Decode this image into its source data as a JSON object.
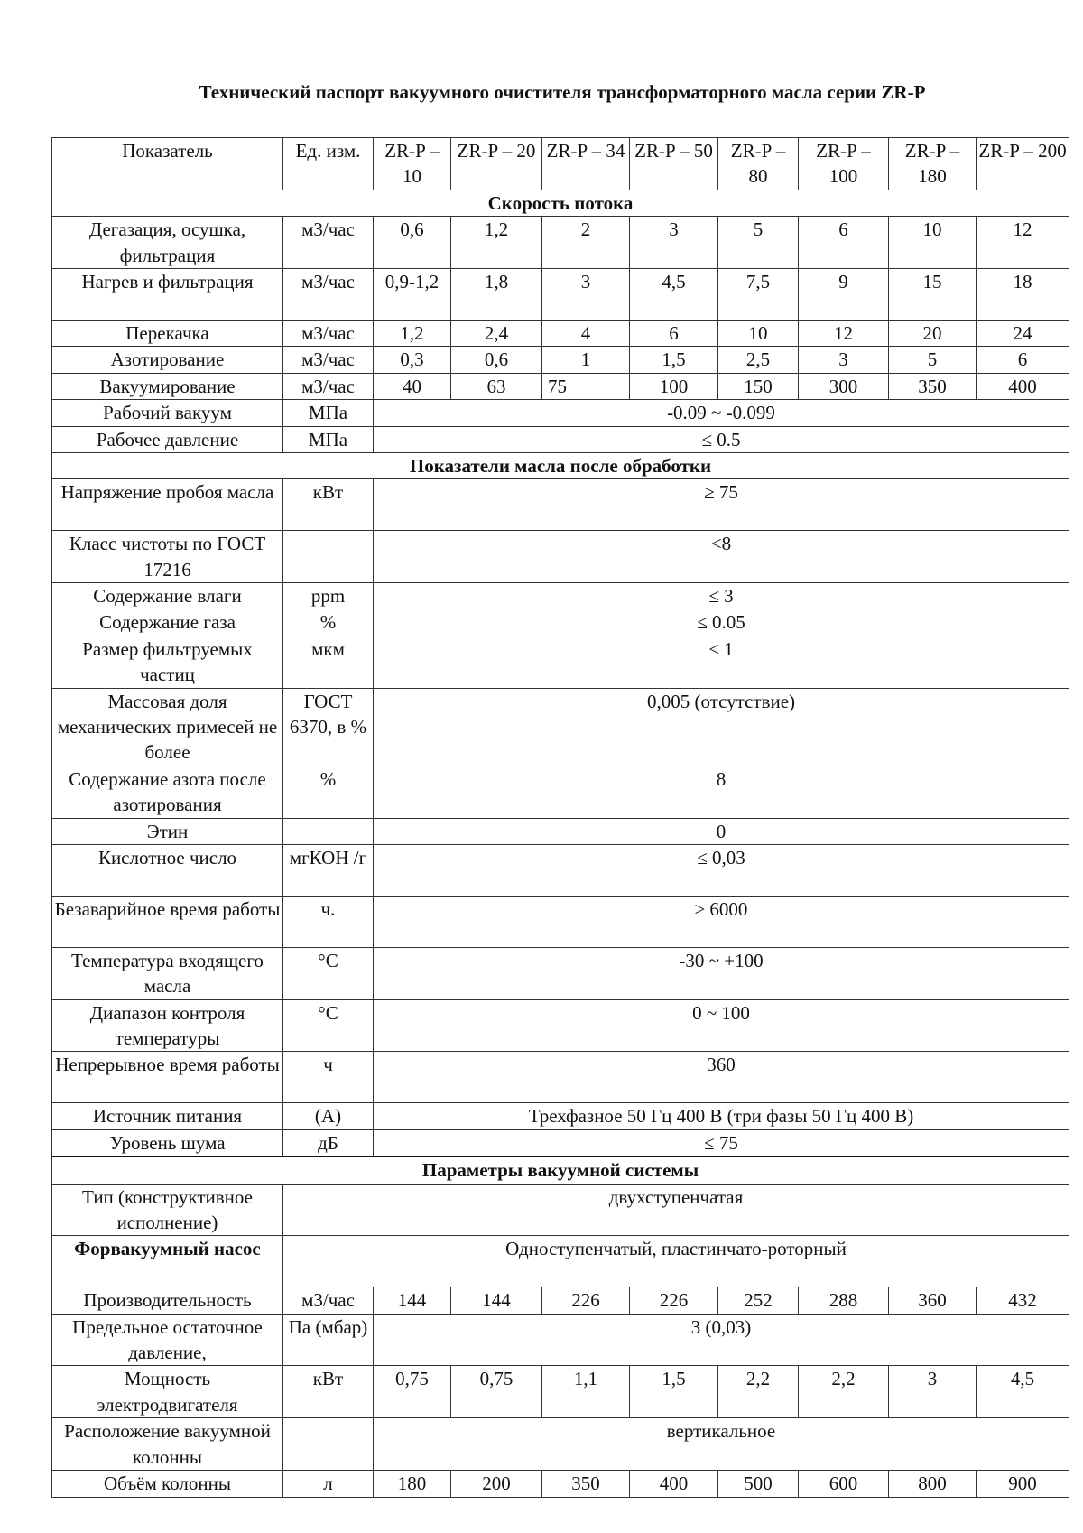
{
  "title": "Технический паспорт вакуумного очистителя трансформаторного масла серии ZR-P",
  "header": {
    "indicator": "Показатель",
    "unit": "Ед. изм.",
    "models": [
      "ZR-P – 10",
      "ZR-P – 20",
      "ZR-P – 34",
      "ZR-P – 50",
      "ZR-P – 80",
      "ZR-P – 100",
      "ZR-P – 180",
      "ZR-P – 200"
    ]
  },
  "rows": [
    {
      "section": "Скорость потока"
    },
    {
      "label": "Дегазация, осушка, фильтрация",
      "unit": "м3/час",
      "values": [
        "0,6",
        "1,2",
        "2",
        "3",
        "5",
        "6",
        "10",
        "12"
      ],
      "lines": 2
    },
    {
      "label": "Нагрев и фильтрация",
      "unit": "м3/час",
      "values": [
        "0,9-1,2",
        "1,8",
        "3",
        "4,5",
        "7,5",
        "9",
        "15",
        "18"
      ],
      "lines": 2
    },
    {
      "label": "Перекачка",
      "unit": "м3/час",
      "values": [
        "1,2",
        "2,4",
        "4",
        "6",
        "10",
        "12",
        "20",
        "24"
      ],
      "lines": 1
    },
    {
      "label": "Азотирование",
      "unit": "м3/час",
      "values": [
        "0,3",
        "0,6",
        "1",
        "1,5",
        "2,5",
        "3",
        "5",
        "6"
      ],
      "lines": 1
    },
    {
      "label": "Вакуумирование",
      "unit": "м3/час",
      "values": [
        "40",
        "63",
        "75",
        "100",
        "150",
        "300",
        "350",
        "400"
      ],
      "lines": 1
    },
    {
      "label": "Рабочий вакуум",
      "unit": "МПа",
      "value": "-0.09 ~ -0.099",
      "lines": 1
    },
    {
      "label": "Рабочее давление",
      "unit": "МПа",
      "value": "≤ 0.5",
      "lines": 1
    },
    {
      "section": "Показатели масла после обработки"
    },
    {
      "label": "Напряжение пробоя масла",
      "unit": "кВт",
      "value": "≥ 75",
      "lines": 2
    },
    {
      "label": "Класс чистоты по ГОСТ 17216",
      "unit": "",
      "value": "<8",
      "lines": 2
    },
    {
      "label": "Содержание влаги",
      "unit": "ppm",
      "value": "≤ 3",
      "lines": 1
    },
    {
      "label": "Содержание газа",
      "unit": "%",
      "value": "≤ 0.05",
      "lines": 1
    },
    {
      "label": "Размер фильтруемых частиц",
      "unit": "мкм",
      "value": "≤ 1",
      "lines": 2
    },
    {
      "label": "Массовая доля механических примесей не более",
      "unit": "ГОСТ 6370, в %",
      "value": "0,005 (отсутствие)",
      "lines": 3
    },
    {
      "label": "Содержание азота после азотирования",
      "unit": "%",
      "value": "8",
      "lines": 2
    },
    {
      "label": "Этин",
      "unit": "",
      "value": "0",
      "lines": 1
    },
    {
      "label": "Кислотное число",
      "unit": "мгКОН /г",
      "value": "≤ 0,03",
      "lines": 2
    },
    {
      "label": "Безаварийное время работы",
      "unit": "ч.",
      "value": "≥ 6000",
      "lines": 2
    },
    {
      "label": "Температура входящего масла",
      "unit": "°C",
      "value": "-30 ~ +100",
      "lines": 2
    },
    {
      "label": "Диапазон контроля температуры",
      "unit": "°C",
      "value": "0 ~ 100",
      "lines": 2
    },
    {
      "label": "Непрерывное время работы",
      "unit": "ч",
      "value": "360",
      "lines": 2
    },
    {
      "label": "Источник питания",
      "unit": "(A)",
      "value": "Трехфазное 50 Гц 400 В (три фазы 50 Гц 400 В)",
      "lines": 1
    },
    {
      "label": "Уровень шума",
      "unit": "дБ",
      "value": "≤ 75",
      "lines": 1
    },
    {
      "section": "Параметры вакуумной системы",
      "thick": true
    },
    {
      "label": "Тип (конструктивное исполнение)",
      "wide": "двухступенчатая",
      "lines": 2
    },
    {
      "label": "Форвакуумный насос",
      "wide": "Одноступенчатый, пластинчато-роторный",
      "lines": 2,
      "bold": true
    },
    {
      "label": "Производительность",
      "unit": "м3/час",
      "values": [
        "144",
        "144",
        "226",
        "226",
        "252",
        "288",
        "360",
        "432"
      ],
      "lines": 1
    },
    {
      "label": "Предельное остаточное давление,",
      "unit": "Па (мбар)",
      "value": "3 (0,03)",
      "lines": 2
    },
    {
      "label": "Мощность электродвигателя",
      "unit": "кВт",
      "values": [
        "0,75",
        "0,75",
        "1,1",
        "1,5",
        "2,2",
        "2,2",
        "3",
        "4,5"
      ],
      "lines": 2
    },
    {
      "label": "Расположение вакуумной колонны",
      "unit": "",
      "value": "вертикальное",
      "lines": 2
    },
    {
      "label": "Объём колонны",
      "unit": "л",
      "values": [
        "180",
        "200",
        "350",
        "400",
        "500",
        "600",
        "800",
        "900"
      ],
      "lines": 1
    }
  ]
}
